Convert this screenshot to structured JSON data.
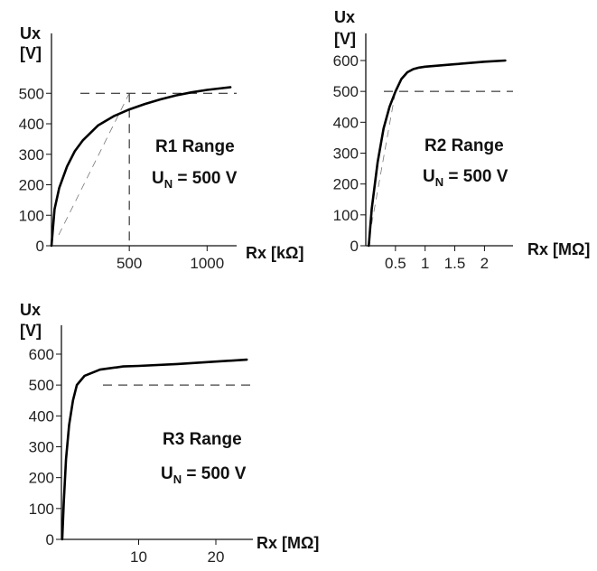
{
  "chart_data": [
    {
      "type": "line",
      "range_label": "R1 Range",
      "un_main": "U",
      "un_sub": "N",
      "un_rest": " = 500 V",
      "ylabel_1": "Ux",
      "ylabel_2": "[V]",
      "xlabel": "Rx [kΩ]",
      "xlim": [
        0,
        1250
      ],
      "ylim": [
        0,
        580
      ],
      "yticks": [
        0,
        100,
        200,
        300,
        400,
        500
      ],
      "xticks": [
        500,
        1000
      ],
      "xtick_labels": [
        "500",
        "1000"
      ],
      "reference_lines": {
        "horizontal": 500,
        "vertical": 500
      },
      "series": [
        {
          "x": [
            0,
            20,
            50,
            100,
            150,
            200,
            300,
            400,
            500,
            600,
            700,
            800,
            900,
            1000,
            1100,
            1150
          ],
          "y": [
            0,
            120,
            190,
            260,
            310,
            345,
            395,
            425,
            447,
            465,
            480,
            493,
            503,
            511,
            517,
            520
          ]
        }
      ]
    },
    {
      "type": "line",
      "range_label": "R2 Range",
      "un_main": "U",
      "un_sub": "N",
      "un_rest": " = 500 V",
      "ylabel_1": "Ux",
      "ylabel_2": "[V]",
      "xlabel": "Rx [MΩ]",
      "xlim": [
        0,
        2.65
      ],
      "ylim": [
        0,
        660
      ],
      "yticks": [
        0,
        100,
        200,
        300,
        400,
        500,
        600
      ],
      "xticks": [
        0.5,
        1,
        1.5,
        2
      ],
      "xtick_labels": [
        "0.5",
        "1",
        "1.5",
        "2"
      ],
      "reference_lines": {
        "horizontal": 500
      },
      "series": [
        {
          "x": [
            0.05,
            0.1,
            0.2,
            0.3,
            0.4,
            0.5,
            0.6,
            0.7,
            0.8,
            0.9,
            1.0,
            1.5,
            2.0,
            2.35
          ],
          "y": [
            0,
            120,
            270,
            380,
            450,
            500,
            540,
            562,
            572,
            577,
            580,
            588,
            596,
            600
          ]
        }
      ]
    },
    {
      "type": "line",
      "range_label": "R3 Range",
      "un_main": "U",
      "un_sub": "N",
      "un_rest": " = 500 V",
      "ylabel_1": "Ux",
      "ylabel_2": "[V]",
      "xlabel": "Rx [MΩ]",
      "xlim": [
        0,
        26
      ],
      "ylim": [
        0,
        640
      ],
      "yticks": [
        0,
        100,
        200,
        300,
        400,
        500,
        600
      ],
      "xticks": [
        10,
        20
      ],
      "xtick_labels": [
        "10",
        "20"
      ],
      "reference_lines": {
        "horizontal": 500
      },
      "series": [
        {
          "x": [
            0.1,
            0.3,
            0.6,
            1.0,
            1.5,
            2.0,
            3.0,
            5.0,
            8.0,
            10,
            15,
            20,
            24
          ],
          "y": [
            0,
            120,
            260,
            370,
            450,
            500,
            530,
            550,
            560,
            562,
            568,
            576,
            582
          ]
        }
      ]
    }
  ]
}
